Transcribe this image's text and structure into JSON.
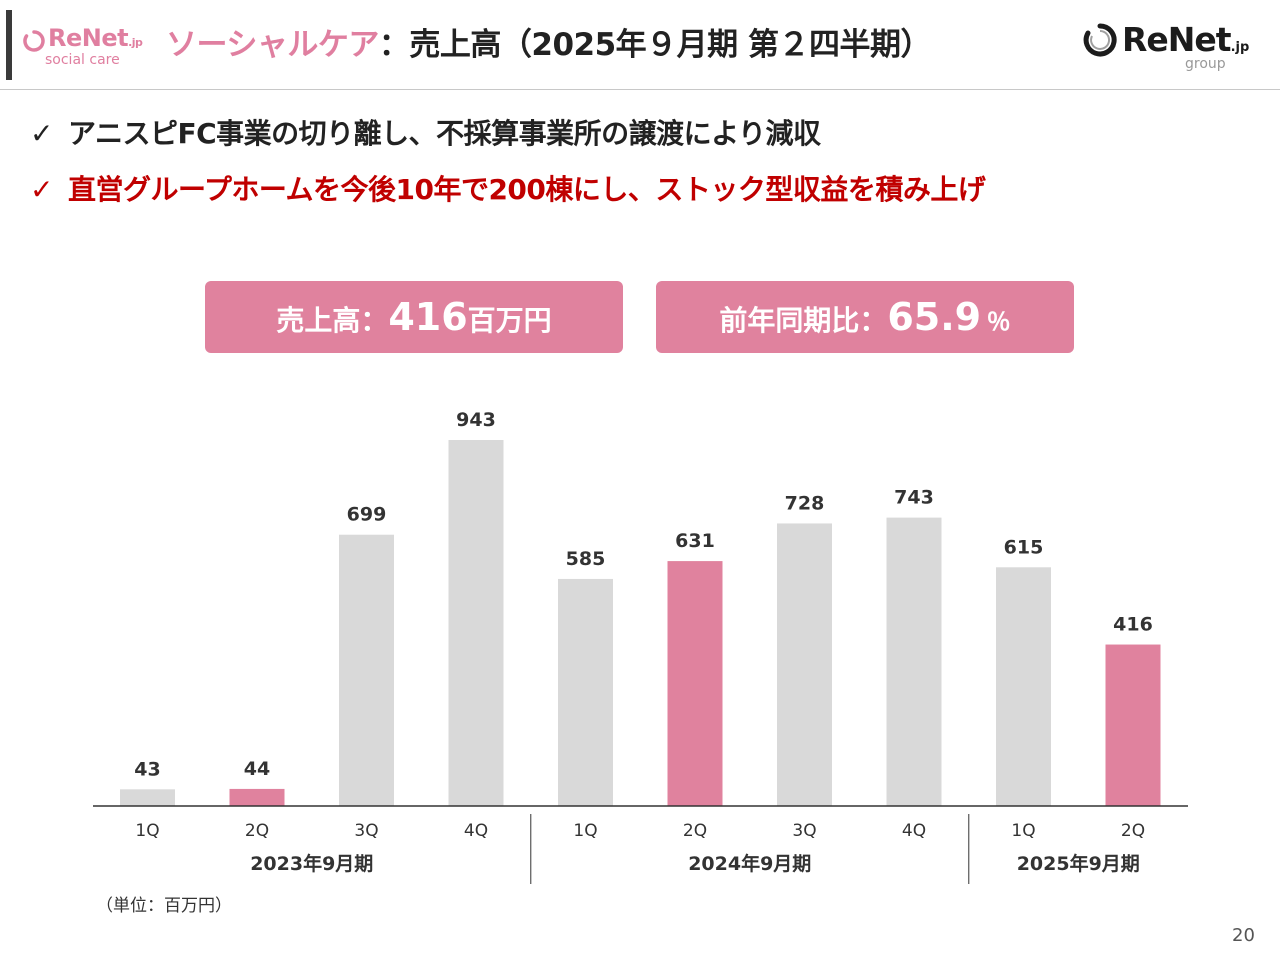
{
  "header": {
    "logo_left_brand": "ReNet",
    "logo_left_jp": ".jp",
    "logo_left_sub": "social care",
    "title_segment": "ソーシャルケア",
    "title_rest": "：売上高（2025年９月期 第２四半期）",
    "logo_right_brand": "ReNet",
    "logo_right_jp": ".jp",
    "logo_right_sub": "group"
  },
  "bullets": [
    {
      "check": "✓",
      "text": "アニスピFC事業の切り離し、不採算事業所の譲渡により減収"
    },
    {
      "check": "✓",
      "text": "直営グループホームを今後10年で200棟にし、ストック型収益を積み上げ"
    }
  ],
  "kpis": {
    "sales": {
      "label": "売上高：",
      "value": "416",
      "unit": "百万円"
    },
    "yoy": {
      "label": "前年同期比：",
      "value": "65.9",
      "unit": "％"
    }
  },
  "colors": {
    "brand_pink": "#e07fa0",
    "bar_highlight": "#e0829e",
    "bar_default": "#d9d9d9",
    "bullet_red": "#c00000",
    "axis": "#333333"
  },
  "chart_data": {
    "type": "bar",
    "categories": [
      "1Q",
      "2Q",
      "3Q",
      "4Q",
      "1Q",
      "2Q",
      "3Q",
      "4Q",
      "1Q",
      "2Q"
    ],
    "values": [
      43,
      44,
      699,
      943,
      585,
      631,
      728,
      743,
      615,
      416
    ],
    "highlight": [
      false,
      true,
      false,
      false,
      false,
      true,
      false,
      false,
      false,
      true
    ],
    "groups": [
      {
        "label": "2023年9月期",
        "count": 4
      },
      {
        "label": "2024年9月期",
        "count": 4
      },
      {
        "label": "2025年9月期",
        "count": 2
      }
    ],
    "ylim": [
      0,
      943
    ],
    "grid": false,
    "title": "",
    "xlabel": "",
    "ylabel": ""
  },
  "footnote": "（単位：百万円）",
  "page_number": "20"
}
